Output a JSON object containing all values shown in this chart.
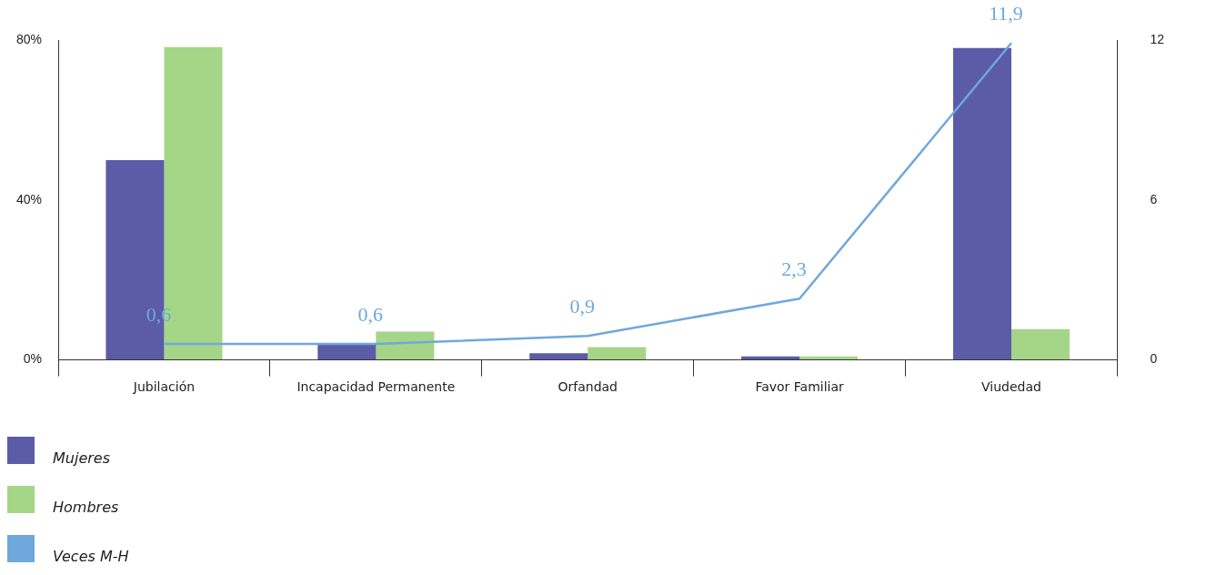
{
  "chart_data": {
    "type": "bar",
    "categories": [
      "Jubilación",
      "Incapacidad Permanente",
      "Orfandad",
      "Favor Familiar",
      "Viudedad"
    ],
    "series": [
      {
        "name": "Mujeres",
        "color": "#5b5ba8",
        "values": [
          50,
          3.9,
          1.7,
          0.9,
          78.1
        ]
      },
      {
        "name": "Hombres",
        "color": "#a5d587",
        "values": [
          78.3,
          7.1,
          3.2,
          0.9,
          7.7
        ]
      },
      {
        "name": "Veces M-H",
        "type": "line",
        "axis": "y2",
        "color": "#6fa8dc",
        "values": [
          0.6,
          0.6,
          0.9,
          2.3,
          11.9
        ],
        "value_labels": [
          "0,6",
          "0,6",
          "0,9",
          "2,3",
          "11,9"
        ]
      }
    ],
    "ylim": [
      0,
      80
    ],
    "yticks": [
      {
        "value": 0,
        "label": "0%"
      },
      {
        "value": 40,
        "label": "40%"
      },
      {
        "value": 80,
        "label": "80%"
      }
    ],
    "y2lim": [
      0,
      12
    ],
    "y2ticks": [
      0,
      6,
      12
    ],
    "legend": "bottom left",
    "marker": "none"
  }
}
